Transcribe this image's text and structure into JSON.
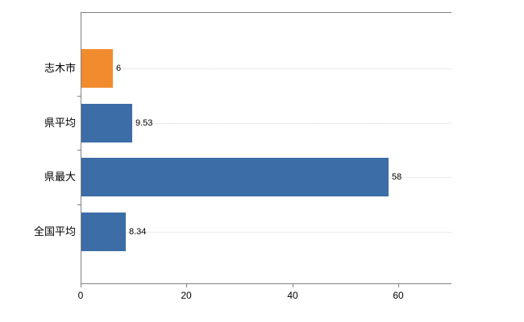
{
  "chart_data": {
    "type": "bar",
    "orientation": "horizontal",
    "title": "",
    "xlabel": "",
    "ylabel": "",
    "categories": [
      "志木市",
      "県平均",
      "県最大",
      "全国平均"
    ],
    "values": [
      6,
      9.53,
      58,
      8.34
    ],
    "value_labels": [
      "6",
      "9.53",
      "58",
      "8.34"
    ],
    "bar_colors": [
      "#f08c2e",
      "#3c6da6",
      "#3c6da6",
      "#3c6da6"
    ],
    "xlim": [
      0,
      70
    ],
    "x_ticks": [
      0,
      20,
      40,
      60
    ],
    "x_tick_labels": [
      "0",
      "20",
      "40",
      "60"
    ],
    "grid": "horizontal-dotted-per-category",
    "legend": "none",
    "colors": {
      "highlight_bar": "#f08c2e",
      "default_bar": "#3c6da6",
      "axis": "#808080",
      "gridline": "#d6d6d6",
      "text": "#000000",
      "background": "#ffffff"
    }
  }
}
